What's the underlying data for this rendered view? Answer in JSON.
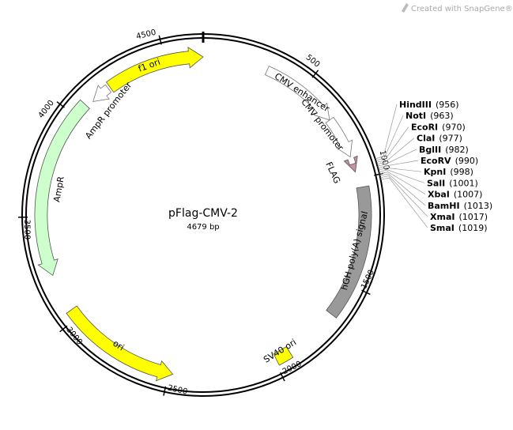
{
  "watermark": "Created with SnapGene®",
  "map": {
    "name": "pFlag-CMV-2",
    "length": "4679 bp",
    "ticks": [
      500,
      1000,
      1500,
      2000,
      2500,
      3000,
      3500,
      4000,
      4500
    ],
    "features": [
      "f1 ori",
      "AmpR promoter",
      "AmpR",
      "ori",
      "SV40 ori",
      "hGH poly(A) signal",
      "CMV enhancer",
      "CMV promoter",
      "FLAG"
    ],
    "sites": [
      {
        "name": "HindIII",
        "position": "(956)"
      },
      {
        "name": "NotI",
        "position": "(963)"
      },
      {
        "name": "EcoRI",
        "position": "(970)"
      },
      {
        "name": "ClaI",
        "position": "(977)"
      },
      {
        "name": "BglII",
        "position": "(982)"
      },
      {
        "name": "EcoRV",
        "position": "(990)"
      },
      {
        "name": "KpnI",
        "position": "(998)"
      },
      {
        "name": "SalI",
        "position": "(1001)"
      },
      {
        "name": "XbaI",
        "position": "(1007)"
      },
      {
        "name": "BamHI",
        "position": "(1013)"
      },
      {
        "name": "XmaI",
        "position": "(1017)"
      },
      {
        "name": "SmaI",
        "position": "(1019)"
      }
    ]
  }
}
